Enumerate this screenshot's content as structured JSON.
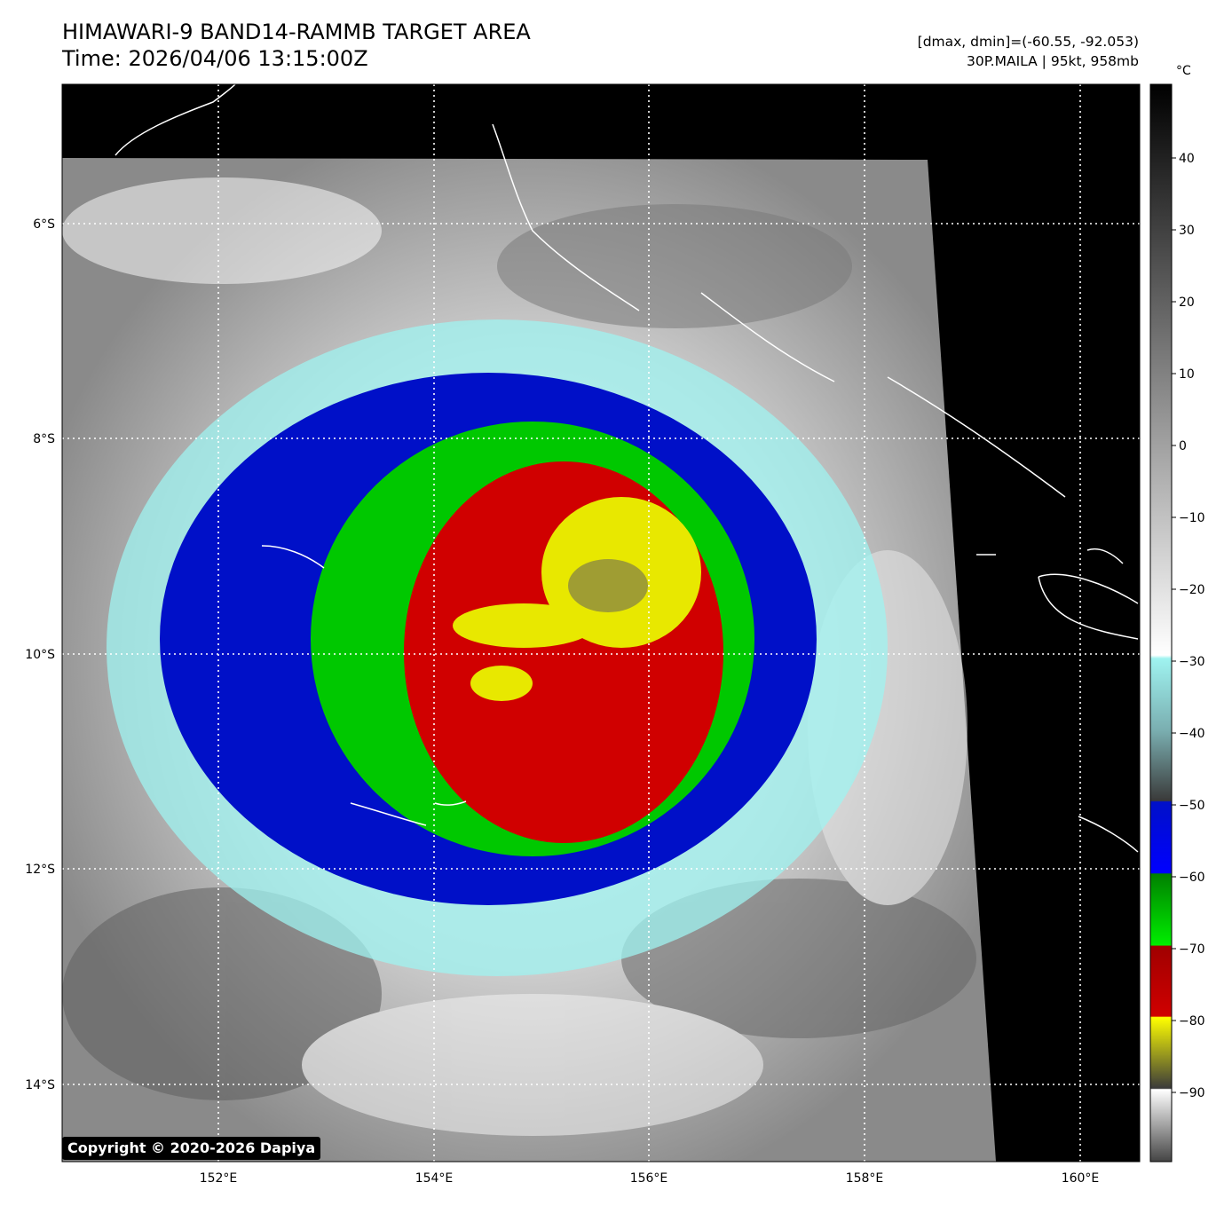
{
  "header": {
    "title_line1": "HIMAWARI-9 BAND14-RAMMB TARGET AREA",
    "title_line2": "Time: 2026/04/06 13:15:00Z",
    "stats": "[dmax, dmin]=(-60.55, -92.053)",
    "storm": "30P.MAILA | 95kt, 958mb"
  },
  "map": {
    "lat_labels": [
      "6°S",
      "8°S",
      "10°S",
      "12°S",
      "14°S"
    ],
    "lon_labels": [
      "152°E",
      "154°E",
      "156°E",
      "158°E",
      "160°E"
    ],
    "copyright": "Copyright © 2020-2026 Dapiya"
  },
  "colorbar": {
    "unit": "°C",
    "ticks": [
      "40",
      "30",
      "20",
      "10",
      "0",
      "−10",
      "−20",
      "−30",
      "−40",
      "−50",
      "−60",
      "−70",
      "−80",
      "−90"
    ],
    "colors": {
      "cyan": "#9ff3f0",
      "blue": "#0010c8",
      "green": "#00c800",
      "red": "#d00000",
      "yellow": "#e8e800",
      "gray": "#9a9a9a"
    }
  }
}
